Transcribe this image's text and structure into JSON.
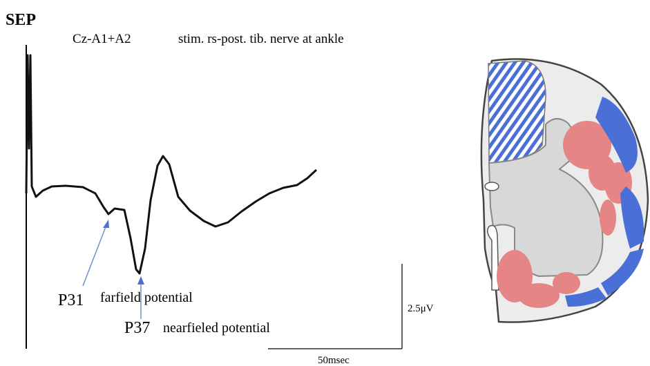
{
  "title": "SEP",
  "montage": "Cz-A1+A2",
  "stimulus": "stim. rs-post. tib. nerve at ankle",
  "peaks": [
    {
      "label": "P31",
      "description": "farfield potential"
    },
    {
      "label": "P37",
      "description": "nearfieled potential"
    }
  ],
  "scale": {
    "amplitude": "2.5μV",
    "time": "50msec"
  }
}
